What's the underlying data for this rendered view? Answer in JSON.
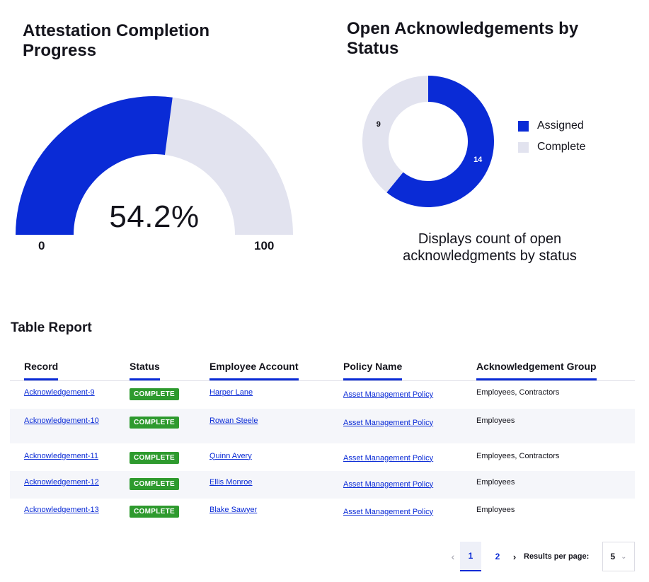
{
  "gauge": {
    "title": "Attestation Completion Progress",
    "value_label": "54.2%",
    "value": 54.2,
    "min_label": "0",
    "max_label": "100",
    "fill_color": "#0a2bd6",
    "track_color": "#e2e3ef"
  },
  "donut": {
    "title": "Open Acknowledgements by Status",
    "caption": "Displays count of open acknowledgments by status",
    "chart_data": {
      "type": "pie",
      "categories": [
        "Assigned",
        "Complete"
      ],
      "values": [
        14,
        9
      ],
      "colors": [
        "#0a2bd6",
        "#e2e3ef"
      ],
      "legend": "right"
    },
    "legend": [
      {
        "label": "Assigned",
        "color": "#0a2bd6"
      },
      {
        "label": "Complete",
        "color": "#e2e3ef"
      }
    ],
    "value_labels": [
      "14",
      "9"
    ]
  },
  "table": {
    "title": "Table Report",
    "headers": [
      "Record",
      "Status",
      "Employee Account",
      "Policy Name",
      "Acknowledgement Group"
    ],
    "rows": [
      {
        "record": "Acknowledgement-9",
        "status": "COMPLETE",
        "employee": "Harper Lane",
        "policy": "Asset Management Policy",
        "group": "Employees, Contractors"
      },
      {
        "record": "Acknowledgement-10",
        "status": "COMPLETE",
        "employee": "Rowan Steele",
        "policy": "Asset Management Policy",
        "group": "Employees"
      },
      {
        "record": "Acknowledgement-11",
        "status": "COMPLETE",
        "employee": "Quinn Avery",
        "policy": "Asset Management Policy",
        "group": "Employees, Contractors"
      },
      {
        "record": "Acknowledgement-12",
        "status": "COMPLETE",
        "employee": "Ellis Monroe",
        "policy": "Asset Management Policy",
        "group": "Employees"
      },
      {
        "record": "Acknowledgement-13",
        "status": "COMPLETE",
        "employee": "Blake Sawyer",
        "policy": "Asset Management Policy",
        "group": "Employees"
      }
    ]
  },
  "pagination": {
    "prev_icon": "chevron-left-icon",
    "pages": [
      "1",
      "2"
    ],
    "current_page": "1",
    "next_icon": "chevron-right-icon",
    "results_label": "Results per page:",
    "results_value": "5",
    "dropdown_icon": "chevron-down-icon"
  }
}
